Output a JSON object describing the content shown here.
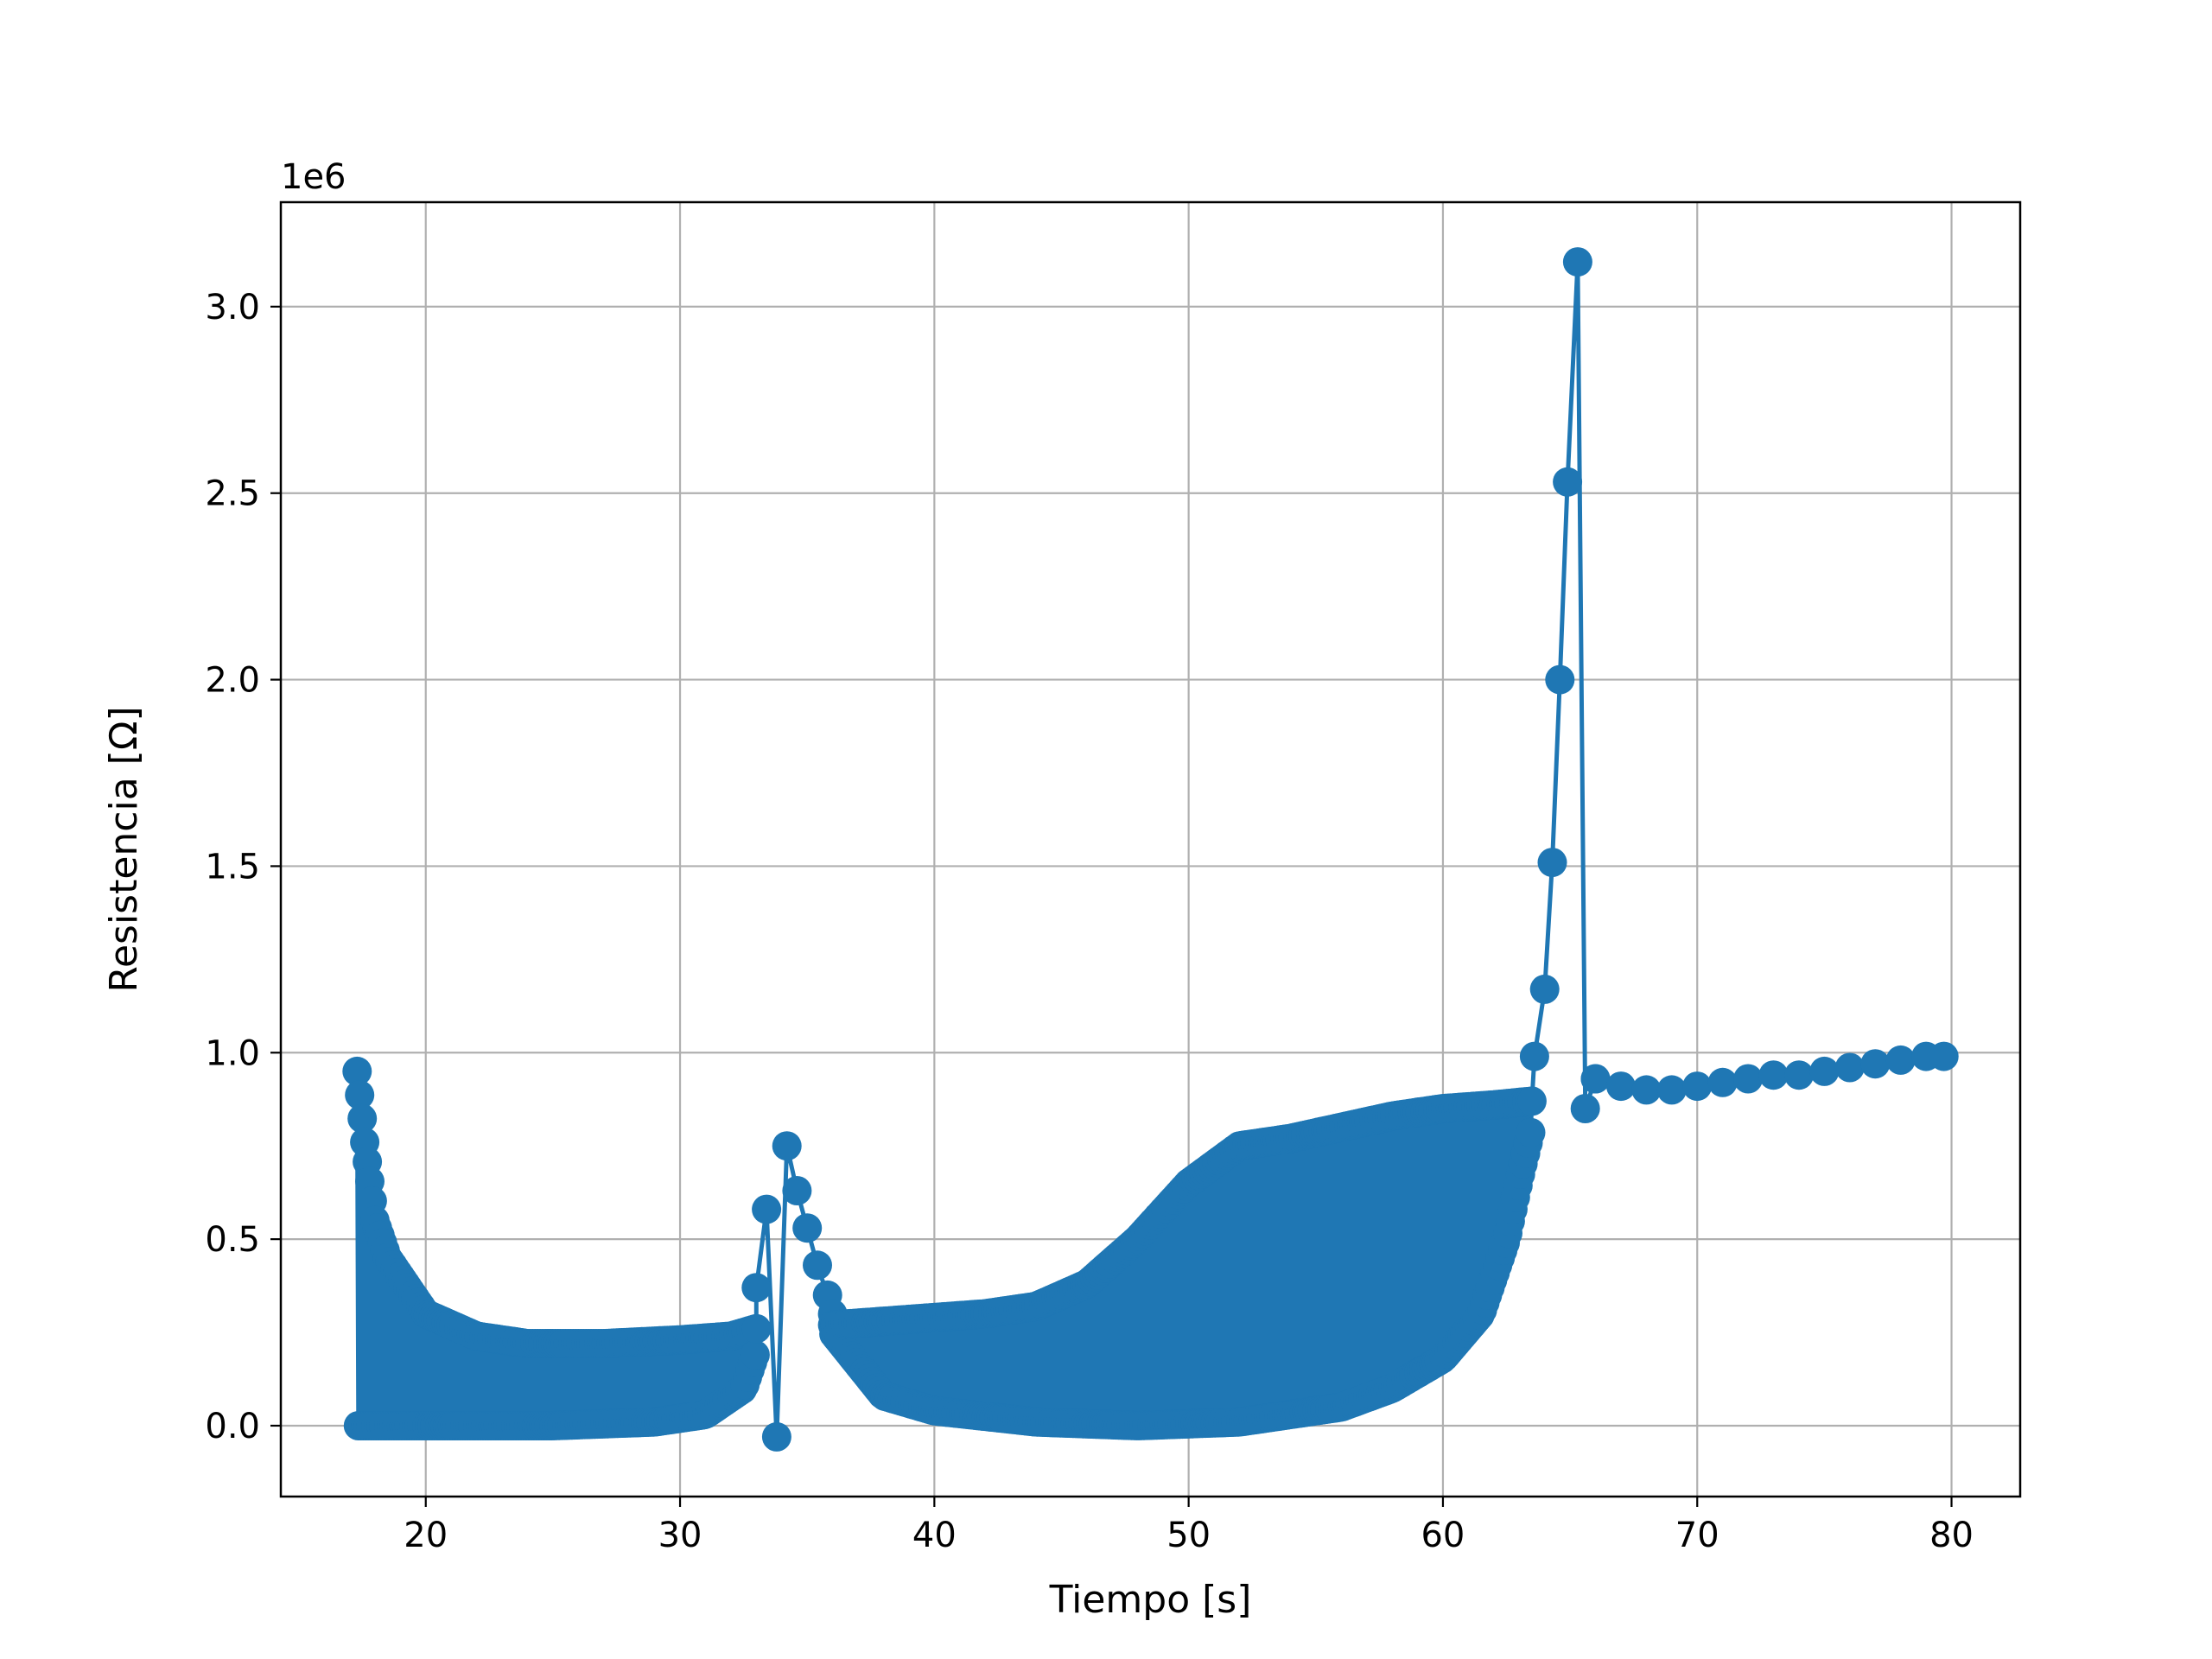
{
  "chart_data": {
    "type": "line",
    "xlabel": "Tiempo [s]",
    "ylabel": "Resistencia [Ω]",
    "y_offset_label": "1e6",
    "xlim": [
      14.3,
      82.7
    ],
    "ylim": [
      -0.19,
      3.28
    ],
    "y_multiplier": 1000000,
    "x_ticks": [
      20,
      30,
      40,
      50,
      60,
      70,
      80
    ],
    "x_tick_labels": [
      "20",
      "30",
      "40",
      "50",
      "60",
      "70",
      "80"
    ],
    "y_ticks": [
      0.0,
      0.5,
      1.0,
      1.5,
      2.0,
      2.5,
      3.0
    ],
    "y_tick_labels": [
      "0.0",
      "0.5",
      "1.0",
      "1.5",
      "2.0",
      "2.5",
      "3.0"
    ],
    "grid": true,
    "legend": "none",
    "color": "#1f77b4",
    "marker": "circle",
    "series": [
      {
        "segments": [
          {
            "x_range": [
              17.3,
              33.0
            ],
            "envelope_upper": [
              [
                17.3,
                0.95
              ],
              [
                17.6,
                0.76
              ],
              [
                18.0,
                0.55
              ],
              [
                18.5,
                0.45
              ],
              [
                19.0,
                0.4
              ],
              [
                20.0,
                0.3
              ],
              [
                21.0,
                0.27
              ],
              [
                22.0,
                0.24
              ],
              [
                24.0,
                0.22
              ],
              [
                27.0,
                0.22
              ],
              [
                30.0,
                0.23
              ],
              [
                32.0,
                0.24
              ],
              [
                33.0,
                0.26
              ]
            ],
            "envelope_lower": [
              [
                17.3,
                0.0
              ],
              [
                20.0,
                0.0
              ],
              [
                25.0,
                0.0
              ],
              [
                29.0,
                0.01
              ],
              [
                31.0,
                0.03
              ],
              [
                32.5,
                0.1
              ],
              [
                33.0,
                0.2
              ]
            ]
          },
          {
            "x_range": [
              33.0,
              36.0
            ],
            "points": [
              [
                33.0,
                0.37
              ],
              [
                33.4,
                0.58
              ],
              [
                33.8,
                -0.03
              ],
              [
                34.2,
                0.75
              ],
              [
                34.6,
                0.63
              ],
              [
                35.0,
                0.53
              ],
              [
                35.4,
                0.43
              ],
              [
                35.8,
                0.35
              ],
              [
                36.0,
                0.3
              ]
            ]
          },
          {
            "x_range": [
              36.0,
              63.5
            ],
            "envelope_upper": [
              [
                36.0,
                0.27
              ],
              [
                38.0,
                0.28
              ],
              [
                40.0,
                0.29
              ],
              [
                42.0,
                0.3
              ],
              [
                44.0,
                0.32
              ],
              [
                46.0,
                0.38
              ],
              [
                48.0,
                0.5
              ],
              [
                50.0,
                0.65
              ],
              [
                52.0,
                0.75
              ],
              [
                54.0,
                0.77
              ],
              [
                56.0,
                0.8
              ],
              [
                58.0,
                0.83
              ],
              [
                60.0,
                0.85
              ],
              [
                62.0,
                0.86
              ],
              [
                63.5,
                0.87
              ]
            ],
            "envelope_lower": [
              [
                36.0,
                0.25
              ],
              [
                38.0,
                0.08
              ],
              [
                40.0,
                0.04
              ],
              [
                44.0,
                0.01
              ],
              [
                48.0,
                0.0
              ],
              [
                52.0,
                0.01
              ],
              [
                56.0,
                0.05
              ],
              [
                58.0,
                0.1
              ],
              [
                60.0,
                0.18
              ],
              [
                61.5,
                0.3
              ],
              [
                62.5,
                0.5
              ],
              [
                63.0,
                0.66
              ],
              [
                63.5,
                0.8
              ]
            ]
          },
          {
            "x_range": [
              63.5,
              66.0
            ],
            "points": [
              [
                63.6,
                0.99
              ],
              [
                64.0,
                1.17
              ],
              [
                64.3,
                1.51
              ],
              [
                64.6,
                2.0
              ],
              [
                64.9,
                2.53
              ],
              [
                65.3,
                3.12
              ],
              [
                65.6,
                0.85
              ],
              [
                66.0,
                0.93
              ]
            ]
          },
          {
            "x_range": [
              66.0,
              79.7
            ],
            "points": [
              [
                66.0,
                0.93
              ],
              [
                67.0,
                0.91
              ],
              [
                68.0,
                0.9
              ],
              [
                69.0,
                0.9
              ],
              [
                70.0,
                0.91
              ],
              [
                71.0,
                0.92
              ],
              [
                72.0,
                0.93
              ],
              [
                73.0,
                0.94
              ],
              [
                74.0,
                0.94
              ],
              [
                75.0,
                0.95
              ],
              [
                76.0,
                0.96
              ],
              [
                77.0,
                0.97
              ],
              [
                78.0,
                0.98
              ],
              [
                79.0,
                0.99
              ],
              [
                79.7,
                0.99
              ]
            ]
          }
        ]
      }
    ]
  }
}
